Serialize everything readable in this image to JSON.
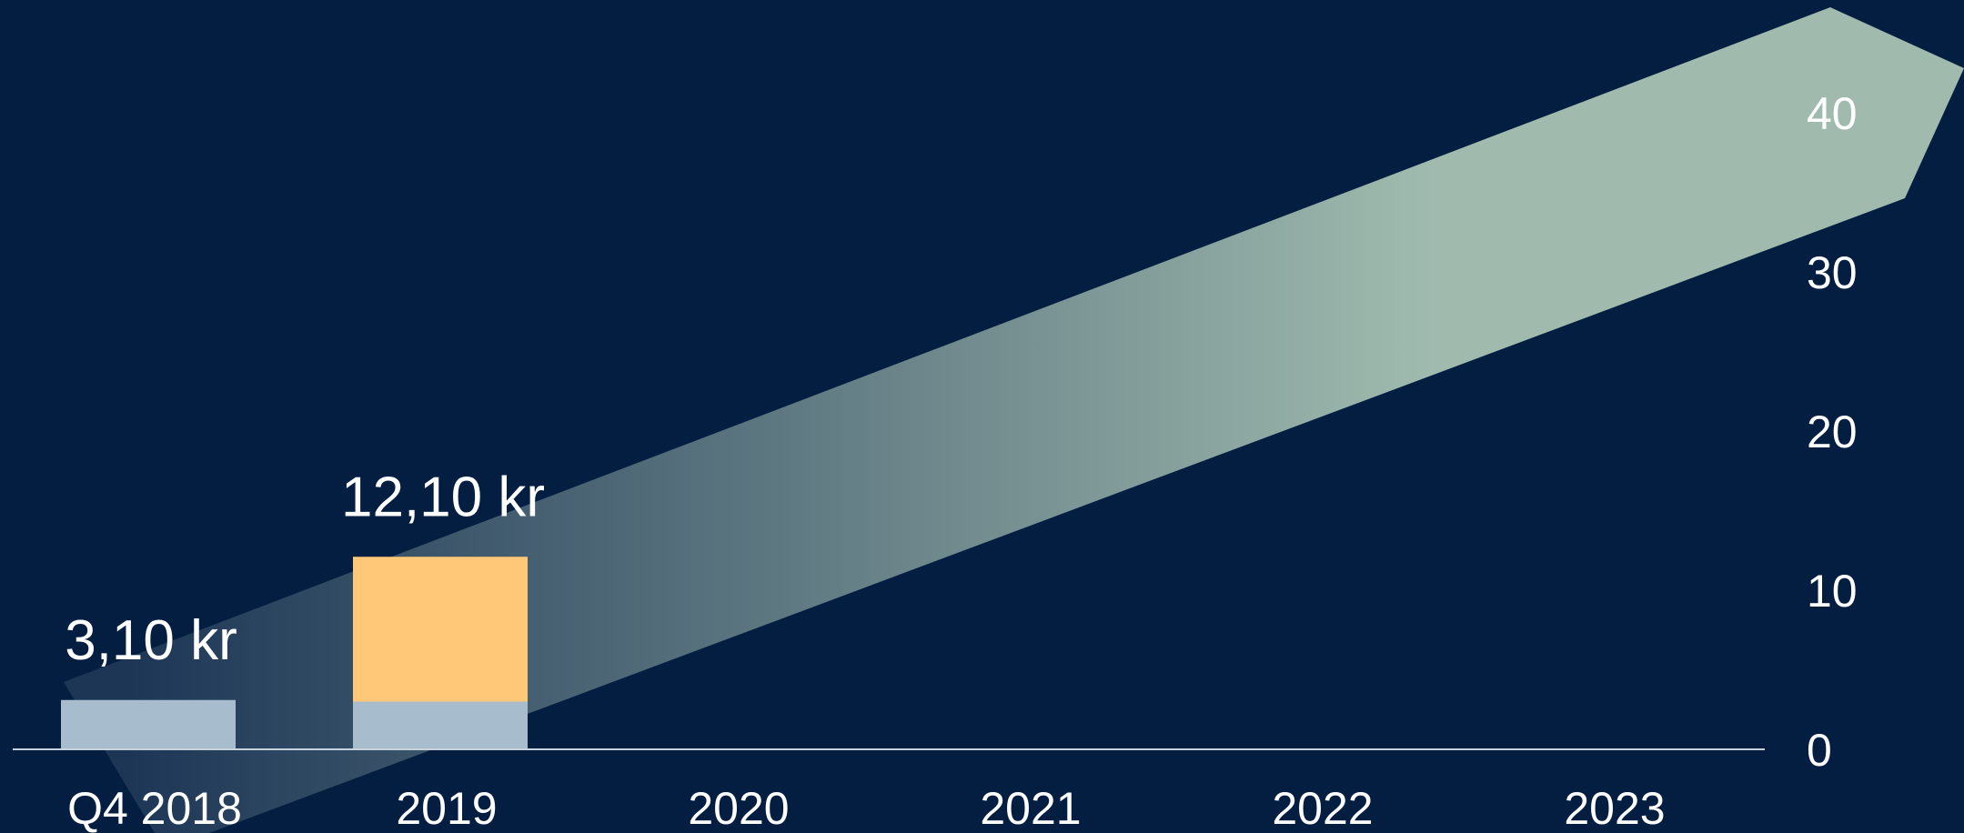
{
  "chart_data": {
    "type": "bar",
    "categories": [
      "Q4 2018",
      "2019",
      "2020",
      "2021",
      "2022",
      "2023"
    ],
    "series": [
      {
        "values": [
          3.1,
          3.0,
          null,
          null,
          null,
          null
        ]
      },
      {
        "values": [
          0,
          9.1,
          null,
          null,
          null,
          null
        ]
      }
    ],
    "data_labels": [
      "3,10 kr",
      "12,10 kr"
    ],
    "yticks": [
      0,
      10,
      20,
      30,
      40
    ],
    "ylim": [
      0,
      47
    ],
    "y_axis_position": "right",
    "grid": false,
    "legend": "none",
    "arrow": {
      "from_category": "Q4 2018",
      "to_category": "2023",
      "direction": "increasing"
    },
    "colors": {
      "background": "#041e42",
      "bar_base": "#a7bccc",
      "bar_top": "#ffc878",
      "arrow_start": "#1d3656",
      "arrow_end": "#a0bbae",
      "axis": "#c8d2dc",
      "text": "#ffffff"
    }
  }
}
